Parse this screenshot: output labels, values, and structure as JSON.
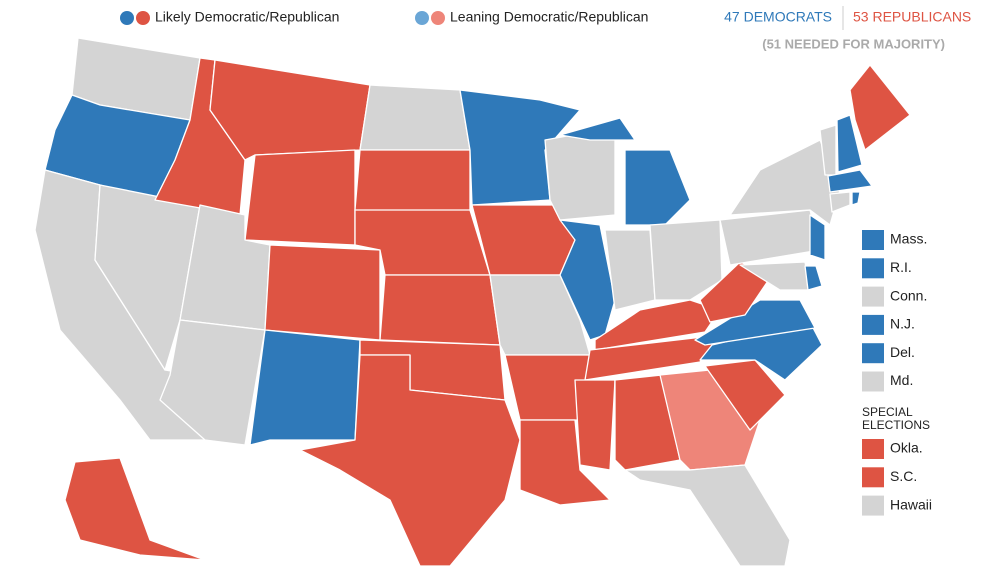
{
  "legend": [
    {
      "label": "Likely Democratic/Republican",
      "colors": [
        "#2f79b9",
        "#de5443"
      ]
    },
    {
      "label": "Leaning Democratic/Republican",
      "colors": [
        "#6aa6d6",
        "#ee8579"
      ]
    }
  ],
  "tally": {
    "democrats": "47 DEMOCRATS",
    "republicans": "53 REPUBLICANS",
    "note": "(51 NEEDED FOR MAJORITY)"
  },
  "small_states": [
    {
      "label": "Mass.",
      "color": "#2f79b9"
    },
    {
      "label": "R.I.",
      "color": "#2f79b9"
    },
    {
      "label": "Conn.",
      "color": "#d4d4d4"
    },
    {
      "label": "N.J.",
      "color": "#2f79b9"
    },
    {
      "label": "Del.",
      "color": "#2f79b9"
    },
    {
      "label": "Md.",
      "color": "#d4d4d4"
    }
  ],
  "special_elections": {
    "title": "SPECIAL ELECTIONS",
    "states": [
      {
        "label": "Okla.",
        "color": "#de5443"
      },
      {
        "label": "S.C.",
        "color": "#de5443"
      },
      {
        "label": "Hawaii",
        "color": "#d4d4d4"
      }
    ]
  }
}
